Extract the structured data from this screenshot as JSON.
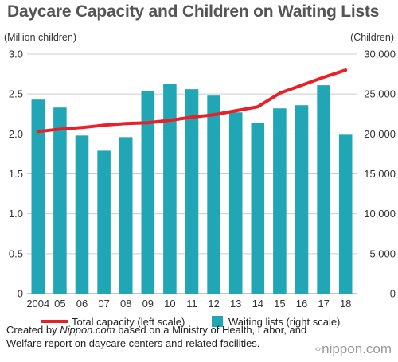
{
  "title": "Daycare Capacity and Children on Waiting Lists",
  "left_axis_unit": "(Million children)",
  "right_axis_unit": "(Children)",
  "footer": {
    "prefix": "Created by ",
    "source_name": "Nippon.com",
    "rest": " based on a Ministry of Health, Labor, and Welfare report on daycare centers and related facilities."
  },
  "logo": {
    "text": "nippon.com",
    "mark": "‹›"
  },
  "colors": {
    "bar": "#20a6b5",
    "line": "#e8202a",
    "grid": "#cccccc",
    "axis": "#888888",
    "title": "#555555"
  },
  "chart_data": {
    "type": "bar",
    "categories": [
      "2004",
      "05",
      "06",
      "07",
      "08",
      "09",
      "10",
      "11",
      "12",
      "13",
      "14",
      "15",
      "16",
      "17",
      "18"
    ],
    "series": [
      {
        "name": "Waiting lists (right scale)",
        "type": "bar",
        "axis": "right",
        "values": [
          24300,
          23300,
          19800,
          17900,
          19600,
          25400,
          26300,
          25600,
          24800,
          22700,
          21400,
          23200,
          23600,
          26100,
          19900
        ]
      },
      {
        "name": "Total capacity (left scale)",
        "type": "line",
        "axis": "left",
        "values": [
          2.03,
          2.06,
          2.08,
          2.11,
          2.13,
          2.14,
          2.17,
          2.21,
          2.24,
          2.29,
          2.34,
          2.51,
          2.61,
          2.71,
          2.8
        ]
      }
    ],
    "y_left": {
      "label": "(Million children)",
      "lim": [
        0,
        3.0
      ],
      "ticks": [
        "0",
        "0.5",
        "1.0",
        "1.5",
        "2.0",
        "2.5",
        "3.0"
      ]
    },
    "y_right": {
      "label": "(Children)",
      "lim": [
        0,
        30000
      ],
      "ticks": [
        "0",
        "5,000",
        "10,000",
        "15,000",
        "20,000",
        "25,000",
        "30,000"
      ]
    },
    "grid": true,
    "legend_position": "bottom"
  }
}
